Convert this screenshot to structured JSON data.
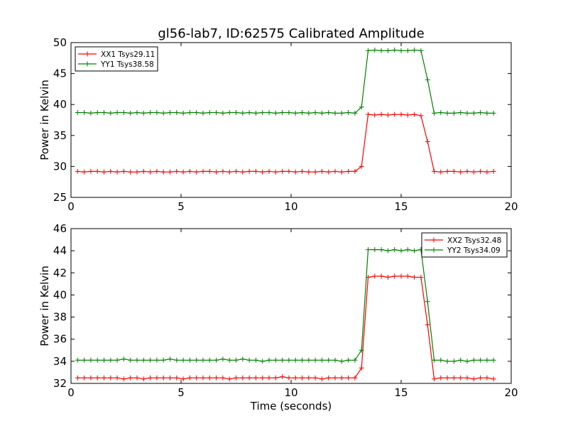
{
  "title": "gl56-lab7, ID:62575 Calibrated Amplitude",
  "chart_data": [
    {
      "type": "line",
      "xlabel": "",
      "ylabel": "Power in Kelvin",
      "xlim": [
        0,
        20
      ],
      "ylim": [
        25,
        50
      ],
      "xticks": [
        0,
        5,
        10,
        15,
        20
      ],
      "yticks": [
        25,
        30,
        35,
        40,
        45,
        50
      ],
      "grid": false,
      "legend_position": "top-left",
      "series": [
        {
          "name": "XX1 Tsys29.11",
          "color": "#ff0000",
          "x": [
            0.3,
            0.6,
            0.9,
            1.2,
            1.5,
            1.8,
            2.1,
            2.4,
            2.7,
            3.0,
            3.3,
            3.6,
            3.9,
            4.2,
            4.5,
            4.8,
            5.1,
            5.4,
            5.7,
            6.0,
            6.3,
            6.6,
            6.9,
            7.2,
            7.5,
            7.8,
            8.1,
            8.4,
            8.7,
            9.0,
            9.3,
            9.6,
            9.9,
            10.2,
            10.5,
            10.8,
            11.1,
            11.4,
            11.7,
            12.0,
            12.3,
            12.6,
            12.9,
            13.2,
            13.5,
            13.8,
            14.1,
            14.4,
            14.7,
            15.0,
            15.3,
            15.6,
            15.9,
            16.2,
            16.5,
            16.8,
            17.1,
            17.4,
            17.7,
            18.0,
            18.3,
            18.6,
            18.9,
            19.2
          ],
          "y": [
            29.2,
            29.1,
            29.2,
            29.2,
            29.1,
            29.2,
            29.1,
            29.2,
            29.1,
            29.1,
            29.2,
            29.1,
            29.2,
            29.1,
            29.1,
            29.2,
            29.1,
            29.2,
            29.1,
            29.2,
            29.2,
            29.1,
            29.2,
            29.1,
            29.2,
            29.1,
            29.2,
            29.2,
            29.1,
            29.2,
            29.1,
            29.2,
            29.2,
            29.1,
            29.2,
            29.1,
            29.1,
            29.2,
            29.1,
            29.2,
            29.1,
            29.2,
            29.2,
            30.0,
            38.4,
            38.3,
            38.4,
            38.3,
            38.4,
            38.4,
            38.3,
            38.4,
            38.2,
            34.0,
            29.2,
            29.1,
            29.2,
            29.2,
            29.1,
            29.2,
            29.1,
            29.2,
            29.1,
            29.2
          ]
        },
        {
          "name": "YY1 Tsys38.58",
          "color": "#008000",
          "x": [
            0.3,
            0.6,
            0.9,
            1.2,
            1.5,
            1.8,
            2.1,
            2.4,
            2.7,
            3.0,
            3.3,
            3.6,
            3.9,
            4.2,
            4.5,
            4.8,
            5.1,
            5.4,
            5.7,
            6.0,
            6.3,
            6.6,
            6.9,
            7.2,
            7.5,
            7.8,
            8.1,
            8.4,
            8.7,
            9.0,
            9.3,
            9.6,
            9.9,
            10.2,
            10.5,
            10.8,
            11.1,
            11.4,
            11.7,
            12.0,
            12.3,
            12.6,
            12.9,
            13.2,
            13.5,
            13.8,
            14.1,
            14.4,
            14.7,
            15.0,
            15.3,
            15.6,
            15.9,
            16.2,
            16.5,
            16.8,
            17.1,
            17.4,
            17.7,
            18.0,
            18.3,
            18.6,
            18.9,
            19.2
          ],
          "y": [
            38.7,
            38.7,
            38.6,
            38.7,
            38.7,
            38.6,
            38.7,
            38.7,
            38.6,
            38.7,
            38.6,
            38.7,
            38.7,
            38.6,
            38.7,
            38.7,
            38.6,
            38.7,
            38.7,
            38.6,
            38.7,
            38.7,
            38.6,
            38.7,
            38.7,
            38.6,
            38.7,
            38.6,
            38.7,
            38.7,
            38.6,
            38.7,
            38.7,
            38.6,
            38.7,
            38.6,
            38.7,
            38.6,
            38.7,
            38.6,
            38.6,
            38.7,
            38.6,
            39.6,
            48.7,
            48.8,
            48.7,
            48.7,
            48.8,
            48.7,
            48.7,
            48.8,
            48.7,
            44.0,
            38.6,
            38.7,
            38.6,
            38.6,
            38.7,
            38.6,
            38.6,
            38.7,
            38.6,
            38.6
          ]
        }
      ]
    },
    {
      "type": "line",
      "xlabel": "Time (seconds)",
      "ylabel": "Power in Kelvin",
      "xlim": [
        0,
        20
      ],
      "ylim": [
        32,
        46
      ],
      "xticks": [
        0,
        5,
        10,
        15,
        20
      ],
      "yticks": [
        32,
        34,
        36,
        38,
        40,
        42,
        44,
        46
      ],
      "grid": false,
      "legend_position": "top-right",
      "series": [
        {
          "name": "XX2 Tsys32.48",
          "color": "#ff0000",
          "x": [
            0.3,
            0.6,
            0.9,
            1.2,
            1.5,
            1.8,
            2.1,
            2.4,
            2.7,
            3.0,
            3.3,
            3.6,
            3.9,
            4.2,
            4.5,
            4.8,
            5.1,
            5.4,
            5.7,
            6.0,
            6.3,
            6.6,
            6.9,
            7.2,
            7.5,
            7.8,
            8.1,
            8.4,
            8.7,
            9.0,
            9.3,
            9.6,
            9.9,
            10.2,
            10.5,
            10.8,
            11.1,
            11.4,
            11.7,
            12.0,
            12.3,
            12.6,
            12.9,
            13.2,
            13.5,
            13.8,
            14.1,
            14.4,
            14.7,
            15.0,
            15.3,
            15.6,
            15.9,
            16.2,
            16.5,
            16.8,
            17.1,
            17.4,
            17.7,
            18.0,
            18.3,
            18.6,
            18.9,
            19.2
          ],
          "y": [
            32.5,
            32.5,
            32.5,
            32.5,
            32.5,
            32.5,
            32.5,
            32.4,
            32.5,
            32.5,
            32.4,
            32.5,
            32.5,
            32.5,
            32.5,
            32.5,
            32.4,
            32.5,
            32.5,
            32.5,
            32.5,
            32.5,
            32.5,
            32.4,
            32.5,
            32.5,
            32.5,
            32.5,
            32.5,
            32.5,
            32.5,
            32.6,
            32.5,
            32.5,
            32.5,
            32.5,
            32.5,
            32.4,
            32.5,
            32.5,
            32.5,
            32.5,
            32.5,
            33.4,
            41.6,
            41.7,
            41.7,
            41.6,
            41.7,
            41.7,
            41.7,
            41.6,
            41.6,
            37.3,
            32.4,
            32.5,
            32.5,
            32.5,
            32.5,
            32.5,
            32.4,
            32.5,
            32.5,
            32.4
          ]
        },
        {
          "name": "YY2 Tsys34.09",
          "color": "#008000",
          "x": [
            0.3,
            0.6,
            0.9,
            1.2,
            1.5,
            1.8,
            2.1,
            2.4,
            2.7,
            3.0,
            3.3,
            3.6,
            3.9,
            4.2,
            4.5,
            4.8,
            5.1,
            5.4,
            5.7,
            6.0,
            6.3,
            6.6,
            6.9,
            7.2,
            7.5,
            7.8,
            8.1,
            8.4,
            8.7,
            9.0,
            9.3,
            9.6,
            9.9,
            10.2,
            10.5,
            10.8,
            11.1,
            11.4,
            11.7,
            12.0,
            12.3,
            12.6,
            12.9,
            13.2,
            13.5,
            13.8,
            14.1,
            14.4,
            14.7,
            15.0,
            15.3,
            15.6,
            15.9,
            16.2,
            16.5,
            16.8,
            17.1,
            17.4,
            17.7,
            18.0,
            18.3,
            18.6,
            18.9,
            19.2
          ],
          "y": [
            34.1,
            34.1,
            34.1,
            34.1,
            34.1,
            34.1,
            34.1,
            34.2,
            34.1,
            34.1,
            34.1,
            34.1,
            34.1,
            34.1,
            34.2,
            34.1,
            34.1,
            34.1,
            34.1,
            34.1,
            34.1,
            34.1,
            34.2,
            34.1,
            34.1,
            34.2,
            34.1,
            34.1,
            34.0,
            34.1,
            34.1,
            34.1,
            34.1,
            34.1,
            34.1,
            34.1,
            34.1,
            34.1,
            34.1,
            34.1,
            34.0,
            34.1,
            34.1,
            35.0,
            44.1,
            44.1,
            44.1,
            44.0,
            44.1,
            44.0,
            44.1,
            44.0,
            44.1,
            39.4,
            34.1,
            34.1,
            34.0,
            34.0,
            34.1,
            34.0,
            34.1,
            34.1,
            34.1,
            34.1
          ]
        }
      ]
    }
  ]
}
